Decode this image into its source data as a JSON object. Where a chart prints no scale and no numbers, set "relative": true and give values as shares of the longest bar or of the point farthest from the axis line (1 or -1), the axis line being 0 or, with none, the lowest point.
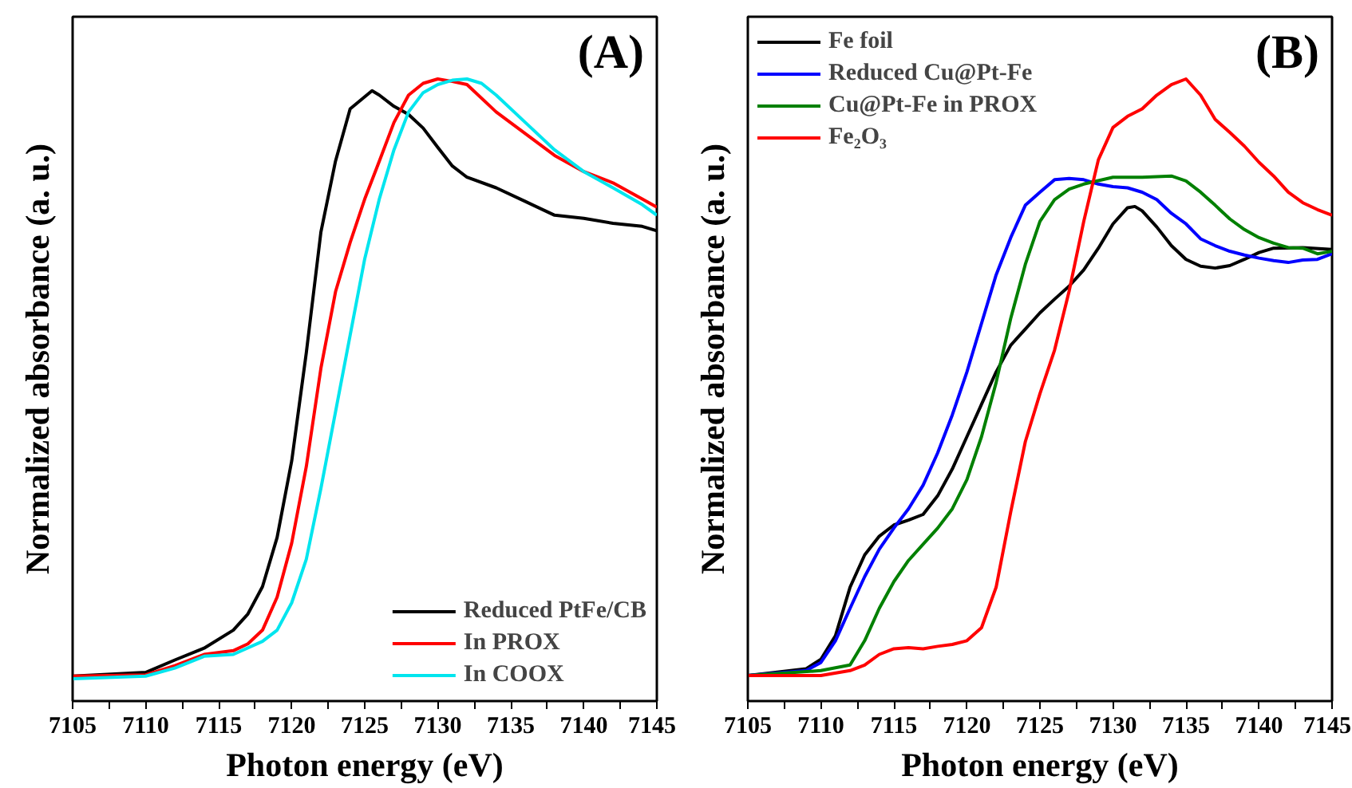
{
  "chart_data": [
    {
      "type": "line",
      "relative": true,
      "xlabel": "Photon energy (eV)",
      "ylabel": "Normalized absorbance (a. u.)",
      "annotations": [
        "(A)"
      ],
      "legend": "bottom right",
      "xlim": [
        7105,
        7145
      ],
      "xticks": [
        7105,
        {
          "value": 7107.5,
          "label": null
        },
        7110,
        {
          "value": 7112.5,
          "label": null
        },
        7115,
        {
          "value": 7117.5,
          "label": null
        },
        7120,
        {
          "value": 7122.5,
          "label": null
        },
        7125,
        {
          "value": 7127.5,
          "label": null
        },
        7130,
        {
          "value": 7132.5,
          "label": null
        },
        7135,
        {
          "value": 7137.5,
          "label": null
        },
        7140,
        {
          "value": 7142.5,
          "label": null
        },
        7145
      ],
      "series": [
        {
          "name": "Reduced PtFe/CB",
          "color": "#000000",
          "x": [
            7105,
            7110,
            7112,
            7114,
            7116,
            7117,
            7118,
            7119,
            7120,
            7121,
            7122,
            7123,
            7124,
            7125.5,
            7126,
            7127,
            7128,
            7129,
            7130,
            7131,
            7132,
            7134,
            7136,
            7138,
            7140,
            7142,
            7144,
            7145
          ],
          "values": [
            0.04,
            0.046,
            0.066,
            0.085,
            0.114,
            0.14,
            0.184,
            0.263,
            0.386,
            0.56,
            0.754,
            0.868,
            0.952,
            0.981,
            0.974,
            0.956,
            0.943,
            0.921,
            0.89,
            0.86,
            0.842,
            0.825,
            0.803,
            0.781,
            0.776,
            0.768,
            0.763,
            0.756
          ]
        },
        {
          "name": "In PROX",
          "color": "#ff0000",
          "x": [
            7105,
            7110,
            7112,
            7114,
            7116,
            7117,
            7118,
            7119,
            7120,
            7121,
            7122,
            7123,
            7124,
            7125,
            7126,
            7127,
            7128,
            7129,
            7130,
            7131,
            7132,
            7134,
            7136,
            7138,
            7140,
            7142,
            7144,
            7145
          ],
          "values": [
            0.04,
            0.042,
            0.057,
            0.075,
            0.081,
            0.092,
            0.114,
            0.167,
            0.254,
            0.377,
            0.535,
            0.658,
            0.737,
            0.807,
            0.868,
            0.93,
            0.974,
            0.993,
            1.0,
            0.996,
            0.991,
            0.947,
            0.912,
            0.877,
            0.851,
            0.833,
            0.807,
            0.794
          ]
        },
        {
          "name": "In COOX",
          "color": "#00e5ee",
          "x": [
            7105,
            7110,
            7112,
            7114,
            7116,
            7118,
            7119,
            7120,
            7121,
            7122,
            7123,
            7124,
            7125,
            7126,
            7127,
            7128,
            7129,
            7130,
            7131,
            7132,
            7133,
            7134,
            7136,
            7138,
            7140,
            7142,
            7144,
            7145
          ],
          "values": [
            0.036,
            0.04,
            0.053,
            0.072,
            0.075,
            0.096,
            0.114,
            0.158,
            0.228,
            0.342,
            0.465,
            0.588,
            0.711,
            0.807,
            0.886,
            0.947,
            0.978,
            0.991,
            0.998,
            1.0,
            0.993,
            0.974,
            0.93,
            0.886,
            0.851,
            0.825,
            0.798,
            0.781
          ]
        }
      ]
    },
    {
      "type": "line",
      "relative": true,
      "xlabel": "Photon energy (eV)",
      "ylabel": "Normalized absorbance (a. u.)",
      "annotations": [
        "(B)"
      ],
      "legend": "top left",
      "xlim": [
        7105,
        7145
      ],
      "xticks": [
        7105,
        {
          "value": 7107.5,
          "label": null
        },
        7110,
        {
          "value": 7112.5,
          "label": null
        },
        7115,
        {
          "value": 7117.5,
          "label": null
        },
        7120,
        {
          "value": 7122.5,
          "label": null
        },
        7125,
        {
          "value": 7127.5,
          "label": null
        },
        7130,
        {
          "value": 7132.5,
          "label": null
        },
        7135,
        {
          "value": 7137.5,
          "label": null
        },
        7140,
        {
          "value": 7142.5,
          "label": null
        },
        7145
      ],
      "series": [
        {
          "name": "Fe foil",
          "color": "#000000",
          "x": [
            7105,
            7109,
            7110,
            7111,
            7112,
            7113,
            7114,
            7115,
            7116,
            7117,
            7118,
            7119,
            7120,
            7121,
            7122,
            7123,
            7124,
            7125,
            7126,
            7127,
            7128,
            7129,
            7130,
            7131,
            7131.5,
            7132,
            7133,
            7134,
            7135,
            7136,
            7137,
            7138,
            7139,
            7140,
            7141,
            7143,
            7145
          ],
          "values": [
            0.041,
            0.052,
            0.067,
            0.105,
            0.183,
            0.235,
            0.265,
            0.283,
            0.291,
            0.3,
            0.33,
            0.373,
            0.425,
            0.477,
            0.529,
            0.572,
            0.598,
            0.624,
            0.646,
            0.667,
            0.693,
            0.728,
            0.767,
            0.793,
            0.795,
            0.788,
            0.762,
            0.732,
            0.71,
            0.699,
            0.696,
            0.7,
            0.71,
            0.721,
            0.728,
            0.729,
            0.726
          ]
        },
        {
          "name": "Reduced Cu@Pt-Fe",
          "color": "#0000ff",
          "x": [
            7105,
            7109,
            7110,
            7111,
            7112,
            7113,
            7114,
            7115,
            7116,
            7117,
            7118,
            7119,
            7120,
            7121,
            7122,
            7123,
            7124,
            7125,
            7126,
            7127,
            7128,
            7129,
            7130,
            7131,
            7132,
            7133,
            7134,
            7135,
            7136,
            7137,
            7138,
            7139,
            7140,
            7141,
            7142,
            7143,
            7144,
            7145
          ],
          "values": [
            0.041,
            0.049,
            0.062,
            0.097,
            0.149,
            0.2,
            0.244,
            0.278,
            0.309,
            0.347,
            0.399,
            0.46,
            0.529,
            0.607,
            0.685,
            0.745,
            0.797,
            0.818,
            0.838,
            0.84,
            0.838,
            0.831,
            0.827,
            0.825,
            0.818,
            0.806,
            0.784,
            0.767,
            0.743,
            0.732,
            0.723,
            0.717,
            0.712,
            0.708,
            0.705,
            0.709,
            0.71,
            0.719
          ]
        },
        {
          "name": "Cu@Pt-Fe in PROX",
          "color": "#008000",
          "x": [
            7105,
            7110,
            7112,
            7113,
            7114,
            7115,
            7116,
            7117,
            7118,
            7119,
            7120,
            7121,
            7122,
            7123,
            7124,
            7125,
            7126,
            7127,
            7128,
            7130,
            7132,
            7134,
            7135,
            7136,
            7137,
            7138,
            7139,
            7140,
            7141,
            7142,
            7143,
            7144,
            7145
          ],
          "values": [
            0.041,
            0.049,
            0.058,
            0.097,
            0.149,
            0.192,
            0.226,
            0.252,
            0.278,
            0.309,
            0.356,
            0.425,
            0.512,
            0.615,
            0.702,
            0.771,
            0.806,
            0.823,
            0.831,
            0.842,
            0.842,
            0.844,
            0.836,
            0.818,
            0.797,
            0.775,
            0.758,
            0.745,
            0.736,
            0.729,
            0.728,
            0.719,
            0.723
          ]
        },
        {
          "name": "Fe₂O₃",
          "color": "#ff0000",
          "x": [
            7105,
            7110,
            7112,
            7113,
            7114,
            7115,
            7116,
            7117,
            7118,
            7119,
            7120,
            7121,
            7122,
            7123,
            7124,
            7125,
            7126,
            7127,
            7128,
            7129,
            7130,
            7131,
            7132,
            7133,
            7134,
            7135,
            7136,
            7137,
            7138,
            7139,
            7140,
            7141,
            7142,
            7143,
            7144,
            7145
          ],
          "values": [
            0.041,
            0.041,
            0.049,
            0.058,
            0.075,
            0.084,
            0.086,
            0.084,
            0.088,
            0.091,
            0.097,
            0.118,
            0.183,
            0.304,
            0.417,
            0.494,
            0.564,
            0.659,
            0.771,
            0.87,
            0.922,
            0.94,
            0.952,
            0.974,
            0.991,
            1.0,
            0.974,
            0.935,
            0.914,
            0.892,
            0.866,
            0.844,
            0.818,
            0.801,
            0.79,
            0.781
          ]
        }
      ]
    }
  ]
}
